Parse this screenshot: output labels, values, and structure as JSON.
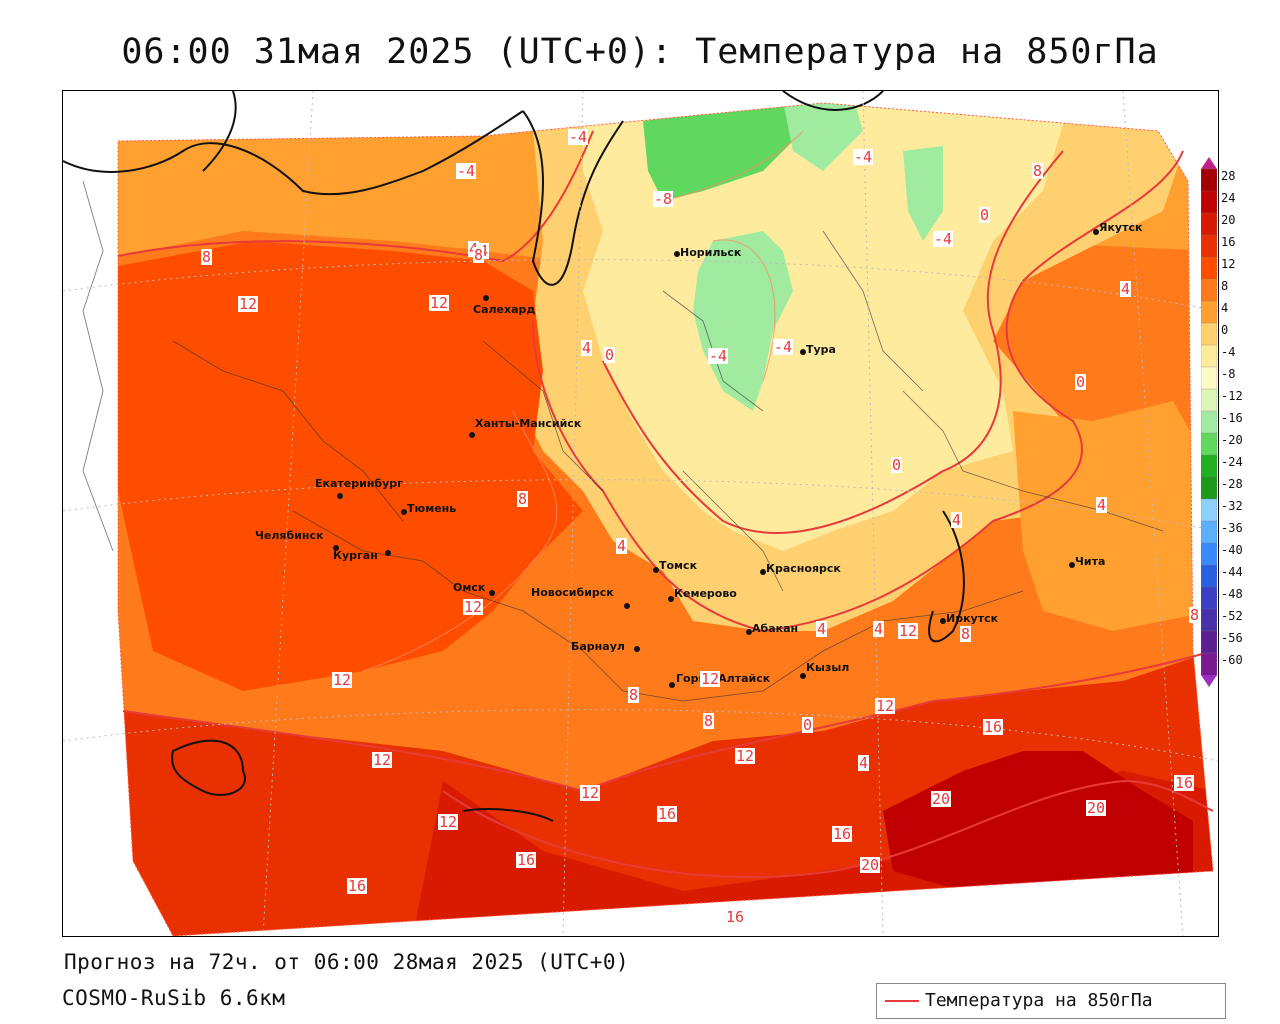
{
  "title": "06:00 31мая 2025 (UTC+0): Температура на 850гПа",
  "footer": {
    "forecast": "Прогноз на 72ч. от 06:00 28мая 2025 (UTC+0)",
    "model": "COSMO-RuSib 6.6км"
  },
  "legend": {
    "label": "Температура на 850гПа",
    "line_color": "#e83a3a"
  },
  "colorbar": {
    "ticks": [
      "28",
      "24",
      "20",
      "16",
      "12",
      "8",
      "4",
      "0",
      "-4",
      "-8",
      "-12",
      "-16",
      "-20",
      "-24",
      "-28",
      "-32",
      "-36",
      "-40",
      "-44",
      "-48",
      "-52",
      "-56",
      "-60"
    ],
    "colors": [
      "#a50000",
      "#c00000",
      "#d81a00",
      "#e83000",
      "#ff4d00",
      "#ff7a1a",
      "#ffa030",
      "#ffd070",
      "#ffeb9e",
      "#fff9c8",
      "#dff5b8",
      "#a0eba0",
      "#60d860",
      "#20b020",
      "#1c9a1c",
      "#8ed0ff",
      "#5ab0ff",
      "#3a8aff",
      "#2a60e0",
      "#3a40c0",
      "#4a30a8",
      "#5a2090",
      "#7a1a90"
    ]
  },
  "cities": [
    {
      "name": "Салехард"
    },
    {
      "name": "Норильск"
    },
    {
      "name": "Якутск"
    },
    {
      "name": "Тура"
    },
    {
      "name": "Ханты-Мансийск"
    },
    {
      "name": "Екатеринбург"
    },
    {
      "name": "Тюмень"
    },
    {
      "name": "Челябинск"
    },
    {
      "name": "Курган"
    },
    {
      "name": "Омск"
    },
    {
      "name": "Новосибирск"
    },
    {
      "name": "Томск"
    },
    {
      "name": "Кемерово"
    },
    {
      "name": "Красноярск"
    },
    {
      "name": "Барнаул"
    },
    {
      "name": "Абакан"
    },
    {
      "name": "Горно-Алтайск"
    },
    {
      "name": "Кызыл"
    },
    {
      "name": "Иркутск"
    },
    {
      "name": "Чита"
    }
  ],
  "contour_labels": [
    "-4",
    "-4",
    "-8",
    "-4",
    "-4",
    "-4",
    "-4",
    "4",
    "8",
    "4",
    "8",
    "8",
    "12",
    "12",
    "4",
    "0",
    "0",
    "0",
    "0",
    "4",
    "4",
    "8",
    "4",
    "4",
    "4",
    "4",
    "0",
    "4",
    "8",
    "8",
    "12",
    "12",
    "12",
    "12",
    "12",
    "12",
    "12",
    "12",
    "16",
    "16",
    "16",
    "16",
    "16",
    "16",
    "16",
    "20",
    "20",
    "20",
    "8",
    "12",
    "8"
  ]
}
